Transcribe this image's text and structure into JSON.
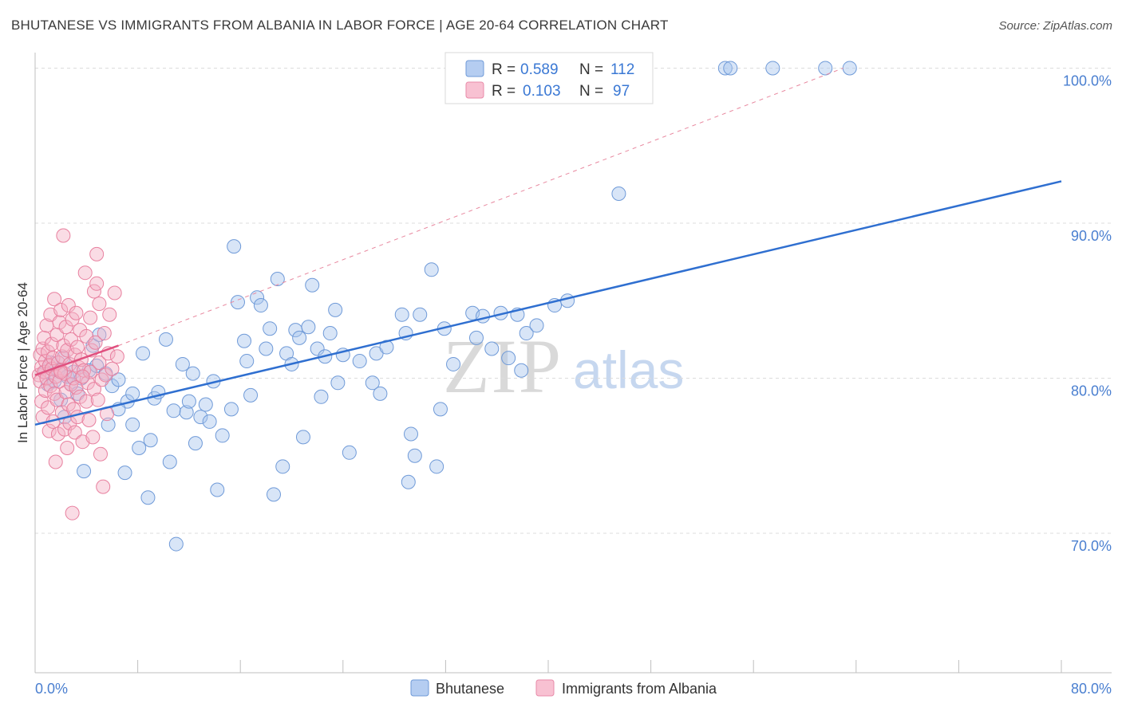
{
  "title": "BHUTANESE VS IMMIGRANTS FROM ALBANIA IN LABOR FORCE | AGE 20-64 CORRELATION CHART",
  "source": "Source: ZipAtlas.com",
  "watermark": {
    "zip": "ZIP",
    "atlas": "atlas"
  },
  "chart_data": {
    "type": "scatter",
    "ylabel": "In Labor Force | Age 20-64",
    "xlim": [
      0,
      80
    ],
    "ylim": [
      61,
      101
    ],
    "x_tick_labels": [
      "0.0%",
      "80.0%"
    ],
    "y_ticks": [
      {
        "value": 100,
        "label": "100.0%"
      },
      {
        "value": 90,
        "label": "90.0%"
      },
      {
        "value": 80,
        "label": "80.0%"
      },
      {
        "value": 70,
        "label": "70.0%"
      }
    ],
    "colors": {
      "blue": "#4a7fd0",
      "blue_fill": "#a9c5ee",
      "pink": "#e8628f",
      "pink_fill": "#f5b1c6"
    },
    "legend": [
      {
        "r_label": "R =",
        "r_value": "0.589",
        "n_label": "N =",
        "n_value": "112"
      },
      {
        "r_label": "R =",
        "r_value": "0.103",
        "n_label": "N =",
        "n_value": "97"
      }
    ],
    "series": [
      {
        "name": "Bhutanese",
        "trend": {
          "x1": 0,
          "y1": 77.0,
          "x2": 80,
          "y2": 92.7
        },
        "points": [
          [
            0.8,
            80.4
          ],
          [
            1.0,
            79.6
          ],
          [
            1.2,
            81.0
          ],
          [
            1.5,
            79.8
          ],
          [
            1.8,
            80.5
          ],
          [
            2.2,
            81.3
          ],
          [
            2.5,
            80.1
          ],
          [
            2.8,
            79.6
          ],
          [
            3.0,
            80.4
          ],
          [
            3.3,
            79.0
          ],
          [
            3.8,
            74.0
          ],
          [
            4.2,
            80.5
          ],
          [
            4.5,
            82.1
          ],
          [
            4.8,
            80.8
          ],
          [
            5.0,
            82.8
          ],
          [
            5.5,
            80.3
          ],
          [
            6.0,
            79.5
          ],
          [
            6.5,
            79.9
          ],
          [
            7.0,
            73.9
          ],
          [
            7.2,
            78.5
          ],
          [
            7.6,
            79.0
          ],
          [
            8.1,
            75.5
          ],
          [
            8.4,
            81.6
          ],
          [
            8.8,
            72.3
          ],
          [
            9.3,
            78.7
          ],
          [
            9.6,
            79.1
          ],
          [
            10.2,
            82.5
          ],
          [
            10.5,
            74.6
          ],
          [
            10.8,
            77.9
          ],
          [
            11.0,
            69.3
          ],
          [
            11.5,
            80.9
          ],
          [
            11.8,
            77.8
          ],
          [
            12.3,
            80.3
          ],
          [
            12.5,
            75.8
          ],
          [
            12.9,
            77.5
          ],
          [
            13.3,
            78.3
          ],
          [
            13.6,
            77.2
          ],
          [
            13.9,
            79.8
          ],
          [
            14.2,
            72.8
          ],
          [
            14.6,
            76.3
          ],
          [
            15.3,
            78.0
          ],
          [
            15.5,
            88.5
          ],
          [
            15.8,
            84.9
          ],
          [
            16.3,
            82.4
          ],
          [
            16.5,
            81.1
          ],
          [
            16.8,
            78.9
          ],
          [
            17.3,
            85.2
          ],
          [
            17.6,
            84.7
          ],
          [
            18.0,
            81.9
          ],
          [
            18.3,
            83.2
          ],
          [
            18.6,
            72.5
          ],
          [
            18.9,
            86.4
          ],
          [
            19.3,
            74.3
          ],
          [
            19.6,
            81.6
          ],
          [
            20.0,
            80.9
          ],
          [
            20.3,
            83.1
          ],
          [
            20.6,
            82.6
          ],
          [
            20.9,
            76.2
          ],
          [
            21.3,
            83.3
          ],
          [
            21.6,
            86.0
          ],
          [
            22.0,
            81.9
          ],
          [
            22.3,
            78.8
          ],
          [
            22.6,
            81.4
          ],
          [
            23.0,
            82.9
          ],
          [
            23.4,
            84.4
          ],
          [
            23.6,
            79.7
          ],
          [
            24.0,
            81.5
          ],
          [
            24.5,
            75.2
          ],
          [
            25.3,
            81.1
          ],
          [
            26.3,
            79.7
          ],
          [
            26.6,
            81.6
          ],
          [
            26.9,
            79.0
          ],
          [
            27.4,
            82.0
          ],
          [
            28.6,
            84.1
          ],
          [
            28.9,
            82.9
          ],
          [
            29.3,
            76.4
          ],
          [
            29.6,
            75.0
          ],
          [
            29.1,
            73.3
          ],
          [
            30.0,
            84.1
          ],
          [
            30.9,
            87.0
          ],
          [
            31.9,
            83.2
          ],
          [
            31.6,
            78.0
          ],
          [
            31.3,
            74.3
          ],
          [
            32.6,
            80.9
          ],
          [
            34.1,
            84.2
          ],
          [
            34.4,
            82.6
          ],
          [
            34.9,
            84.0
          ],
          [
            35.6,
            81.9
          ],
          [
            36.3,
            84.2
          ],
          [
            36.9,
            81.3
          ],
          [
            37.6,
            84.1
          ],
          [
            37.9,
            80.5
          ],
          [
            38.3,
            82.9
          ],
          [
            39.1,
            83.4
          ],
          [
            40.5,
            84.7
          ],
          [
            41.5,
            85.0
          ],
          [
            45.5,
            91.9
          ],
          [
            53.8,
            100.0
          ],
          [
            54.2,
            100.0
          ],
          [
            57.5,
            100.0
          ],
          [
            61.6,
            100.0
          ],
          [
            63.5,
            100.0
          ],
          [
            2.0,
            78.6
          ],
          [
            3.6,
            80.0
          ],
          [
            5.7,
            77.0
          ],
          [
            9.0,
            76.0
          ],
          [
            6.5,
            78.0
          ],
          [
            7.6,
            77.0
          ],
          [
            12.0,
            78.5
          ],
          [
            2.3,
            77.5
          ]
        ]
      },
      {
        "name": "Immigrants from Albania",
        "trend": {
          "x1": 0,
          "y1": 80.2,
          "x2": 6.5,
          "y2": 82.1
        },
        "dashed_extension": {
          "x1": 6.5,
          "y1": 82.1,
          "x2": 63.0,
          "y2": 100.0
        },
        "points": [
          [
            0.3,
            80.2
          ],
          [
            0.4,
            81.5
          ],
          [
            0.4,
            79.8
          ],
          [
            0.5,
            80.7
          ],
          [
            0.5,
            78.5
          ],
          [
            0.6,
            81.9
          ],
          [
            0.6,
            77.5
          ],
          [
            0.7,
            80.4
          ],
          [
            0.7,
            82.6
          ],
          [
            0.8,
            79.2
          ],
          [
            0.8,
            81.1
          ],
          [
            0.9,
            83.4
          ],
          [
            0.9,
            80.0
          ],
          [
            1.0,
            78.1
          ],
          [
            1.0,
            81.7
          ],
          [
            1.1,
            76.6
          ],
          [
            1.1,
            80.8
          ],
          [
            1.2,
            84.1
          ],
          [
            1.2,
            79.5
          ],
          [
            1.3,
            82.2
          ],
          [
            1.3,
            80.6
          ],
          [
            1.4,
            77.2
          ],
          [
            1.4,
            81.3
          ],
          [
            1.5,
            85.1
          ],
          [
            1.5,
            79.0
          ],
          [
            1.6,
            80.1
          ],
          [
            1.6,
            74.6
          ],
          [
            1.7,
            82.8
          ],
          [
            1.7,
            78.6
          ],
          [
            1.8,
            81.0
          ],
          [
            1.8,
            76.4
          ],
          [
            1.9,
            83.6
          ],
          [
            1.9,
            79.8
          ],
          [
            2.0,
            80.5
          ],
          [
            2.0,
            84.4
          ],
          [
            2.1,
            77.8
          ],
          [
            2.1,
            81.4
          ],
          [
            2.2,
            89.2
          ],
          [
            2.2,
            82.1
          ],
          [
            2.3,
            76.7
          ],
          [
            2.3,
            80.3
          ],
          [
            2.4,
            83.3
          ],
          [
            2.4,
            79.1
          ],
          [
            2.5,
            81.8
          ],
          [
            2.5,
            75.5
          ],
          [
            2.6,
            78.3
          ],
          [
            2.6,
            84.7
          ],
          [
            2.7,
            80.9
          ],
          [
            2.7,
            77.1
          ],
          [
            2.8,
            82.5
          ],
          [
            2.8,
            79.6
          ],
          [
            2.9,
            71.3
          ],
          [
            2.9,
            83.8
          ],
          [
            3.0,
            80.0
          ],
          [
            3.0,
            78.0
          ],
          [
            3.1,
            81.5
          ],
          [
            3.1,
            76.5
          ],
          [
            3.2,
            84.2
          ],
          [
            3.2,
            79.4
          ],
          [
            3.3,
            82.0
          ],
          [
            3.3,
            77.5
          ],
          [
            3.4,
            80.7
          ],
          [
            3.5,
            83.1
          ],
          [
            3.5,
            78.8
          ],
          [
            3.6,
            81.2
          ],
          [
            3.7,
            75.9
          ],
          [
            3.8,
            80.5
          ],
          [
            3.9,
            86.8
          ],
          [
            4.0,
            82.7
          ],
          [
            4.0,
            78.5
          ],
          [
            4.1,
            79.7
          ],
          [
            4.2,
            77.3
          ],
          [
            4.3,
            83.9
          ],
          [
            4.3,
            80.4
          ],
          [
            4.4,
            81.8
          ],
          [
            4.5,
            76.2
          ],
          [
            4.6,
            85.6
          ],
          [
            4.6,
            79.3
          ],
          [
            4.7,
            82.3
          ],
          [
            4.8,
            86.1
          ],
          [
            4.9,
            78.6
          ],
          [
            5.0,
            84.8
          ],
          [
            5.0,
            81.0
          ],
          [
            5.1,
            75.1
          ],
          [
            5.2,
            79.9
          ],
          [
            5.3,
            73.0
          ],
          [
            5.4,
            82.9
          ],
          [
            5.5,
            80.2
          ],
          [
            5.6,
            77.7
          ],
          [
            5.7,
            81.6
          ],
          [
            5.8,
            84.1
          ],
          [
            6.0,
            80.6
          ],
          [
            6.2,
            85.5
          ],
          [
            6.4,
            81.4
          ],
          [
            4.8,
            88.0
          ],
          [
            3.7,
            80.1
          ],
          [
            2.0,
            80.4
          ]
        ]
      }
    ]
  },
  "bottom_legend": [
    {
      "label": "Bhutanese"
    },
    {
      "label": "Immigrants from Albania"
    }
  ]
}
